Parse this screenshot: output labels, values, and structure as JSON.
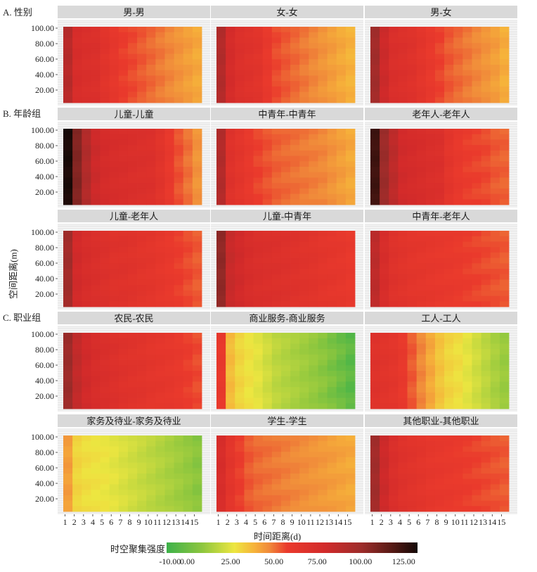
{
  "chart_data": {
    "type": "heatmap",
    "x_label": "时间距离(d)",
    "y_label": "空间距离(m)",
    "x_ticks": [
      "1",
      "2",
      "3",
      "4",
      "5",
      "6",
      "7",
      "8",
      "9",
      "10",
      "11",
      "12",
      "13",
      "14",
      "15"
    ],
    "y_ticks": [
      "100.00",
      "80.00",
      "60.00",
      "40.00",
      "20.00"
    ],
    "legend": {
      "title": "时空聚集强度",
      "ticks": [
        "-10.00",
        "0.00",
        "25.00",
        "50.00",
        "75.00",
        "100.00",
        "125.00"
      ],
      "range": [
        -12,
        133
      ]
    },
    "sections": [
      "A. 性别",
      "B. 年龄组",
      "C. 职业组"
    ],
    "panels": [
      {
        "title": "男-男",
        "intensity": [
          80,
          66,
          64,
          63,
          58,
          54,
          50,
          48,
          46,
          44,
          42,
          40,
          38,
          36,
          34
        ]
      },
      {
        "title": "女-女",
        "intensity": [
          82,
          68,
          62,
          60,
          58,
          52,
          48,
          46,
          44,
          42,
          40,
          38,
          36,
          34,
          32
        ]
      },
      {
        "title": "男-女",
        "intensity": [
          88,
          72,
          64,
          62,
          60,
          56,
          52,
          49,
          46,
          44,
          42,
          40,
          38,
          36,
          33
        ]
      },
      {
        "title": "儿童-儿童",
        "intensity": [
          128,
          98,
          82,
          72,
          68,
          66,
          65,
          64,
          63,
          62,
          58,
          52,
          47,
          43,
          38
        ]
      },
      {
        "title": "中青年-中青年",
        "intensity": [
          82,
          60,
          56,
          52,
          49,
          47,
          45,
          44,
          43,
          42,
          41,
          40,
          38,
          36,
          34
        ]
      },
      {
        "title": "老年人-老年人",
        "intensity": [
          118,
          90,
          78,
          70,
          68,
          66,
          64,
          63,
          56,
          52,
          50,
          49,
          48,
          46,
          45
        ]
      },
      {
        "title": "儿童-老年人",
        "intensity": [
          88,
          70,
          66,
          64,
          62,
          60,
          60,
          59,
          57,
          56,
          54,
          52,
          50,
          48,
          46
        ]
      },
      {
        "title": "儿童-中青年",
        "intensity": [
          94,
          74,
          70,
          66,
          64,
          63,
          62,
          61,
          60,
          59,
          58,
          56,
          55,
          54,
          52
        ]
      },
      {
        "title": "中青年-老年人",
        "intensity": [
          78,
          66,
          60,
          58,
          56,
          55,
          54,
          53,
          52,
          51,
          50,
          49,
          48,
          47,
          46
        ]
      },
      {
        "title": "农民-农民",
        "intensity": [
          90,
          76,
          70,
          66,
          64,
          62,
          60,
          59,
          58,
          56,
          55,
          54,
          52,
          50,
          48
        ]
      },
      {
        "title": "商业服务-商业服务",
        "intensity": [
          52,
          30,
          24,
          21,
          18,
          14,
          10,
          8,
          6,
          4,
          2,
          0,
          -2,
          -4,
          -6
        ]
      },
      {
        "title": "工人-工人",
        "intensity": [
          60,
          58,
          56,
          52,
          46,
          40,
          34,
          28,
          24,
          22,
          18,
          14,
          10,
          6,
          3
        ]
      },
      {
        "title": "家务及待业-家务及待业",
        "intensity": [
          36,
          24,
          22,
          21,
          20,
          18,
          16,
          14,
          12,
          10,
          8,
          6,
          4,
          2,
          0
        ]
      },
      {
        "title": "学生-学生",
        "intensity": [
          66,
          56,
          50,
          46,
          44,
          43,
          42,
          41,
          40,
          39,
          38,
          37,
          36,
          35,
          34
        ]
      },
      {
        "title": "其他职业-其他职业",
        "intensity": [
          88,
          72,
          64,
          60,
          58,
          56,
          54,
          53,
          52,
          51,
          50,
          49,
          48,
          47,
          46
        ]
      }
    ]
  }
}
